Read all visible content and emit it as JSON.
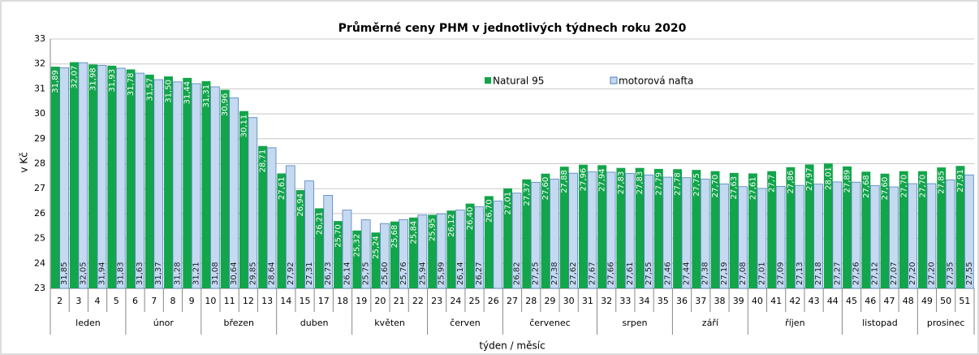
{
  "chart_data": {
    "type": "bar",
    "title": "Průměrné ceny PHM v jednotlivých týdnech roku 2020",
    "y_label": "v Kč",
    "x_label": "týden / měsíc",
    "categories": [
      "2",
      "3",
      "4",
      "5",
      "6",
      "7",
      "8",
      "9",
      "10",
      "11",
      "12",
      "13",
      "14",
      "15",
      "17",
      "18",
      "19",
      "20",
      "21",
      "22",
      "23",
      "24",
      "25",
      "26",
      "27",
      "28",
      "29",
      "30",
      "31",
      "32",
      "33",
      "34",
      "35",
      "36",
      "37",
      "38",
      "39",
      "40",
      "41",
      "42",
      "43",
      "44",
      "45",
      "46",
      "47",
      "48",
      "49",
      "50",
      "51"
    ],
    "groups": [
      {
        "label": "leden",
        "size": 4
      },
      {
        "label": "únor",
        "size": 4
      },
      {
        "label": "březen",
        "size": 4
      },
      {
        "label": "duben",
        "size": 4
      },
      {
        "label": "květen",
        "size": 4
      },
      {
        "label": "červen",
        "size": 4
      },
      {
        "label": "červenec",
        "size": 5
      },
      {
        "label": "srpen",
        "size": 4
      },
      {
        "label": "září",
        "size": 4
      },
      {
        "label": "říjen",
        "size": 5
      },
      {
        "label": "listopad",
        "size": 4
      },
      {
        "label": "prosinec",
        "size": 3
      }
    ],
    "series": [
      {
        "name": "Natural 95",
        "color": "#12a54a",
        "values": [
          31.89,
          32.07,
          31.98,
          31.93,
          31.78,
          31.57,
          31.5,
          31.44,
          31.31,
          30.96,
          30.11,
          28.71,
          27.61,
          26.94,
          26.21,
          25.7,
          25.32,
          25.24,
          25.68,
          25.84,
          25.95,
          26.12,
          26.4,
          26.7,
          27.01,
          27.37,
          27.6,
          27.88,
          27.96,
          27.94,
          27.83,
          27.83,
          27.79,
          27.78,
          27.75,
          27.7,
          27.63,
          27.61,
          27.7,
          27.86,
          27.97,
          28.01,
          27.89,
          27.68,
          27.6,
          27.7,
          27.7,
          27.85,
          27.91
        ],
        "value_labels": [
          "31,89",
          "32,07",
          "31,98",
          "31,93",
          "31,78",
          "31,57",
          "31,50",
          "31,44",
          "31,31",
          "30,96",
          "30,11",
          "28,71",
          "27,61",
          "26,94",
          "26,21",
          "25,70",
          "25,32",
          "25,24",
          "25,68",
          "25,84",
          "25,95",
          "26,12",
          "26,40",
          "26,70",
          "27,01",
          "27,37",
          "27,60",
          "27,88",
          "27,96",
          "27,94",
          "27,83",
          "27,83",
          "27,79",
          "27,78",
          "27,75",
          "27,70",
          "27,63",
          "27,61",
          "27,7",
          "27,86",
          "27,97",
          "28,01",
          "27,89",
          "27,68",
          "27,60",
          "27,70",
          "27,70",
          "27,85",
          "27,91"
        ]
      },
      {
        "name": "motorová  nafta",
        "color": "#c5d9f1",
        "values": [
          31.85,
          32.05,
          31.94,
          31.83,
          31.63,
          31.37,
          31.28,
          31.21,
          31.08,
          30.64,
          29.85,
          28.64,
          27.92,
          27.31,
          26.73,
          26.14,
          25.75,
          25.6,
          25.76,
          25.94,
          25.99,
          26.14,
          26.27,
          26.5,
          26.82,
          27.25,
          27.38,
          27.62,
          27.67,
          27.66,
          27.61,
          27.55,
          27.46,
          27.44,
          27.38,
          27.19,
          27.08,
          27.01,
          27.09,
          27.13,
          27.18,
          27.27,
          27.26,
          27.12,
          27.07,
          27.2,
          27.2,
          27.35,
          27.55
        ],
        "value_labels": [
          "31,85",
          "32,05",
          "31,94",
          "31,83",
          "31,63",
          "31,37",
          "31,28",
          "31,21",
          "31,08",
          "30,64",
          "29,85",
          "28,64",
          "27,92",
          "27,31",
          "26,73",
          "26,14",
          "25,75",
          "25,60",
          "25,76",
          "25,94",
          "25,99",
          "26,14",
          "26,27",
          null,
          "26,82",
          "27,25",
          "27,38",
          "27,62",
          "27,67",
          "27,66",
          "27,61",
          "27,55",
          "27,46",
          "27,44",
          "27,38",
          "27,19",
          "27,08",
          "27,01",
          "27,09",
          "27,13",
          "27,18",
          "27,27",
          "27,26",
          "27,12",
          "27,07",
          "27,20",
          "27,20",
          "27,35",
          "27,55"
        ]
      }
    ],
    "ylim": [
      23,
      33
    ],
    "yticks": [
      23,
      24,
      25,
      26,
      27,
      28,
      29,
      30,
      31,
      32,
      33
    ],
    "grid": true
  }
}
